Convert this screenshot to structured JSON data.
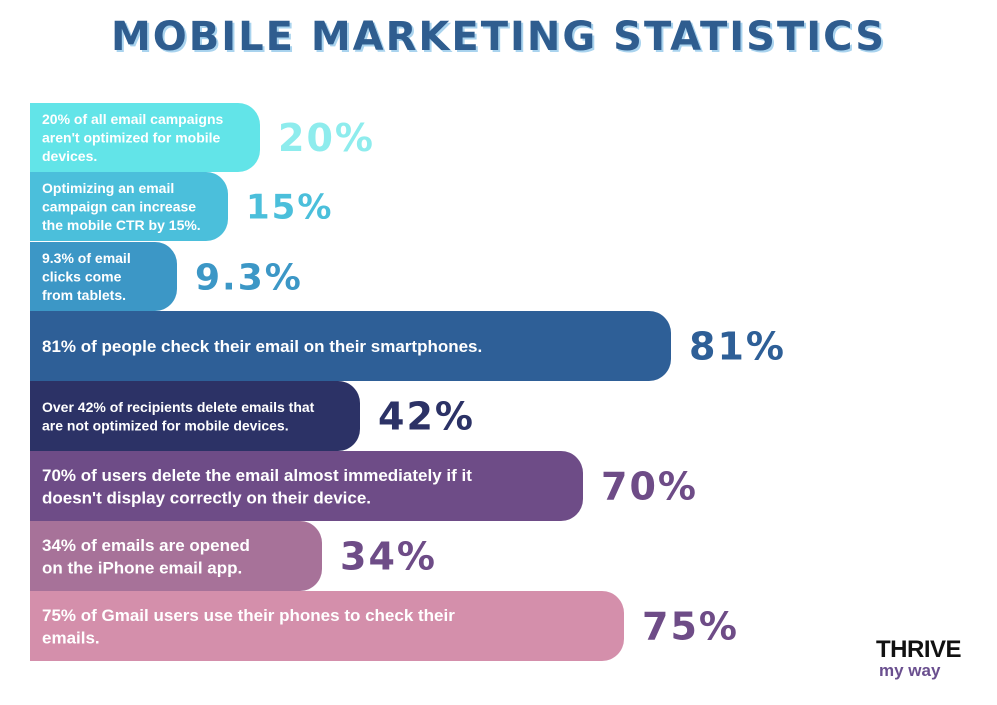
{
  "title": "MOBILE MARKETING STATISTICS",
  "logo": {
    "top": "THRIVE",
    "bottom": "my way"
  },
  "chart_data": {
    "type": "bar",
    "orientation": "horizontal",
    "title": "MOBILE MARKETING STATISTICS",
    "categories": [
      "20% of all email campaigns aren't optimized for mobile devices.",
      "Optimizing an email campaign can increase the mobile CTR by 15%.",
      "9.3% of email clicks come from tablets.",
      "81% of people check their email on their smartphones.",
      "Over 42% of recipients delete emails that are not optimized for mobile devices.",
      "70% of users delete the email almost immediately if it doesn't display correctly on their device.",
      "34% of emails are opened on the iPhone email app.",
      "75% of Gmail users use their phones to check their emails."
    ],
    "values": [
      20,
      15,
      9.3,
      81,
      42,
      70,
      34,
      75
    ],
    "value_labels": [
      "20%",
      "15%",
      "9.3%",
      "81%",
      "42%",
      "70%",
      "34%",
      "75%"
    ],
    "bar_colors": [
      "#62e4e8",
      "#4bbfdb",
      "#3c97c6",
      "#2e5f97",
      "#2c3266",
      "#6e4c87",
      "#a77299",
      "#d48fab"
    ],
    "label_colors": [
      "#8eeced",
      "#4bbfdb",
      "#3c97c6",
      "#2e5f97",
      "#2c3266",
      "#6e4c87",
      "#6e4c87",
      "#6e4c87"
    ],
    "bar_text_lines": [
      [
        "20% of all email campaigns",
        "aren't optimized for mobile",
        "devices."
      ],
      [
        "Optimizing an email",
        "campaign can increase",
        "the mobile CTR by 15%."
      ],
      [
        "9.3% of email",
        "clicks come",
        "from tablets."
      ],
      [
        "81% of people check their email on their smartphones."
      ],
      [
        "Over 42% of recipients delete emails that",
        "are not optimized for mobile devices."
      ],
      [
        "70% of users delete the email almost immediately if it",
        "doesn't display correctly on their device."
      ],
      [
        "34% of emails are opened",
        "on the iPhone email app."
      ],
      [
        "75% of Gmail users use their phones to check their",
        "emails."
      ]
    ],
    "xlabel": "",
    "ylabel": "",
    "grid": false,
    "legend": "none"
  }
}
